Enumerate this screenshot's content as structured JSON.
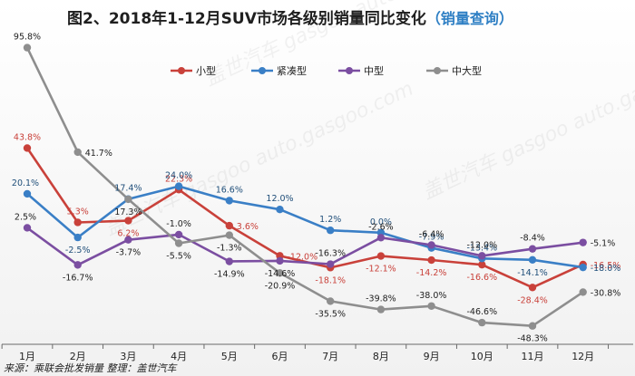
{
  "title": {
    "main": "图2、2018年1-12月SUV市场各级别销量同比变化",
    "link": "（销量查询）"
  },
  "source": "来源：乘联会批发销量   整理：盖世汽车",
  "watermark": "盖世汽车 gasgoo auto.gasgoo.com",
  "chart_data": {
    "type": "line",
    "x": [
      "1月",
      "2月",
      "3月",
      "4月",
      "5月",
      "6月",
      "7月",
      "8月",
      "9月",
      "10月",
      "11月",
      "12月"
    ],
    "series": [
      {
        "name": "小型",
        "color": "#c9413a",
        "values": [
          43.8,
          5.3,
          6.2,
          22.3,
          3.6,
          -12.0,
          -18.1,
          -12.1,
          -14.2,
          -16.6,
          -28.4,
          -16.5
        ],
        "labels": [
          "43.8%",
          "5.3%",
          "6.2%",
          "22.3%",
          "3.6%",
          "-12.0%",
          "-18.1%",
          "-12.1%",
          "-14.2%",
          "-16.6%",
          "-28.4%",
          "-16.5%"
        ]
      },
      {
        "name": "紧凑型",
        "color": "#3a7fc6",
        "values": [
          20.1,
          -2.5,
          17.4,
          24.0,
          16.6,
          12.0,
          1.2,
          0.0,
          -7.9,
          -13.4,
          -14.1,
          -18.0
        ],
        "labels": [
          "20.1%",
          "-2.5%",
          "17.4%",
          "24.0%",
          "16.6%",
          "12.0%",
          "1.2%",
          "0.0%",
          "-7.9%",
          "-13.4%",
          "-14.1%",
          "-18.0%"
        ]
      },
      {
        "name": "中型",
        "color": "#7b4ea1",
        "values": [
          2.5,
          -16.7,
          -3.7,
          -1.0,
          -14.9,
          -14.6,
          -16.3,
          -2.6,
          -6.4,
          -12.0,
          -8.4,
          -5.1
        ],
        "labels": [
          "2.5%",
          "-16.7%",
          "-3.7%",
          "-1.0%",
          "-14.9%",
          "-14.6%",
          "-16.3%",
          "-2.6%",
          "-6.4%",
          "-12.0%",
          "-8.4%",
          "-5.1%"
        ]
      },
      {
        "name": "中大型",
        "color": "#8e8e8e",
        "values": [
          95.8,
          41.7,
          17.3,
          -5.5,
          -1.3,
          -20.9,
          -35.5,
          -39.8,
          -38.0,
          -46.6,
          -48.3,
          -30.8
        ],
        "labels": [
          "95.8%",
          "41.7%",
          "17.3%",
          "-5.5%",
          "-1.3%",
          "-20.9%",
          "-35.5%",
          "-39.8%",
          "-38.0%",
          "-46.6%",
          "-48.3%",
          "-30.8%"
        ]
      }
    ],
    "ylim": [
      -55,
      105
    ],
    "grid": false,
    "legend": "top-center"
  }
}
